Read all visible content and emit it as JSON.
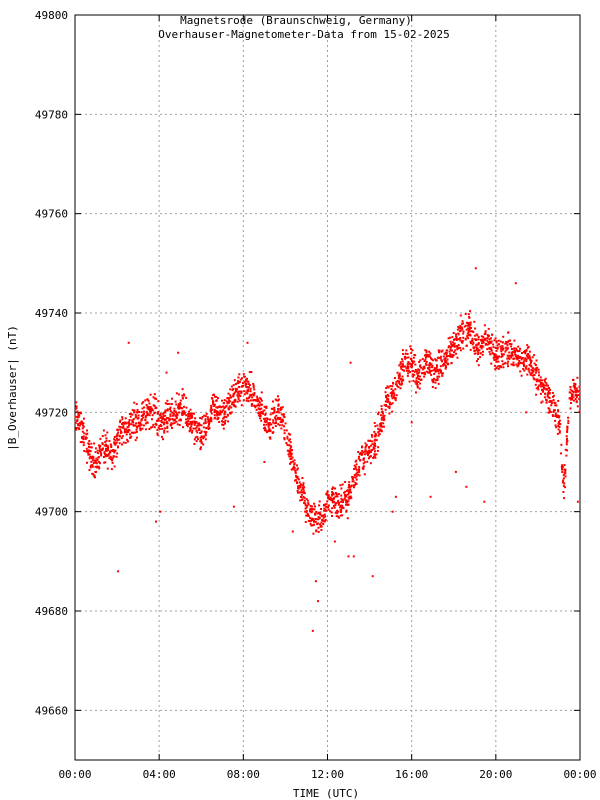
{
  "chart_data": {
    "type": "scatter",
    "title": "Magnetsrode (Braunschweig, Germany)",
    "subtitle": "Overhauser-Magnetometer-Data from 15-02-2025",
    "xlabel": "TIME (UTC)",
    "ylabel": "|B_Overhauser| (nT)",
    "xlim": [
      0,
      24
    ],
    "ylim": [
      49650,
      49800
    ],
    "x_tick_values": [
      0,
      4,
      8,
      12,
      16,
      20,
      24
    ],
    "x_tick_labels": [
      "00:00",
      "04:00",
      "08:00",
      "12:00",
      "16:00",
      "20:00",
      "00:00"
    ],
    "y_tick_values": [
      49660,
      49680,
      49700,
      49720,
      49740,
      49760,
      49780,
      49800
    ],
    "y_tick_labels": [
      "49660",
      "49680",
      "49700",
      "49720",
      "49740",
      "49760",
      "49780",
      "49800"
    ],
    "grid": true,
    "marker_color": "#ff0000",
    "series": [
      {
        "x": [
          0.0,
          0.25,
          0.5,
          0.75,
          1.0,
          1.25,
          1.5,
          1.75,
          2.0,
          2.25,
          2.5,
          2.75,
          3.0,
          3.25,
          3.5,
          3.75,
          4.0,
          4.25,
          4.5,
          4.75,
          5.0,
          5.25,
          5.5,
          5.75,
          6.0,
          6.25,
          6.5,
          6.75,
          7.0,
          7.25,
          7.5,
          7.75,
          8.0,
          8.25,
          8.5,
          8.75,
          9.0,
          9.25,
          9.5,
          9.75,
          10.0,
          10.25,
          10.5,
          10.75,
          11.0,
          11.25,
          11.5,
          11.75,
          12.0,
          12.25,
          12.5,
          12.75,
          13.0,
          13.25,
          13.5,
          13.75,
          14.0,
          14.25,
          14.5,
          14.75,
          15.0,
          15.25,
          15.5,
          15.75,
          16.0,
          16.25,
          16.5,
          16.75,
          17.0,
          17.25,
          17.5,
          17.75,
          18.0,
          18.25,
          18.5,
          18.75,
          19.0,
          19.25,
          19.5,
          19.75,
          20.0,
          20.25,
          20.5,
          20.75,
          21.0,
          21.25,
          21.5,
          21.75,
          22.0,
          22.25,
          22.5,
          22.75,
          23.0,
          23.25,
          23.5,
          23.75,
          24.0
        ],
        "y": [
          49719,
          49718,
          49714,
          49711,
          49710,
          49712,
          49713,
          49711,
          49715,
          49716,
          49717,
          49718,
          49719,
          49719,
          49720,
          49721,
          49718,
          49718,
          49719,
          49720,
          49721,
          49720,
          49718,
          49716,
          49715,
          49717,
          49720,
          49721,
          49719,
          49721,
          49723,
          49724,
          49725,
          49725,
          49723,
          49721,
          49719,
          49718,
          49719,
          49720,
          49717,
          49712,
          49708,
          49704,
          49701,
          49699,
          49698,
          49699,
          49702,
          49703,
          49701,
          49702,
          49703,
          49707,
          49710,
          49711,
          49712,
          49714,
          49717,
          49721,
          49723,
          49725,
          49728,
          49731,
          49730,
          49727,
          49729,
          49731,
          49728,
          49729,
          49730,
          49731,
          49733,
          49735,
          49736,
          49737,
          49734,
          49732,
          49735,
          49734,
          49731,
          49732,
          49733,
          49732,
          49731,
          49730,
          49731,
          49729,
          49727,
          49725,
          49723,
          49721,
          49718,
          49705,
          49722,
          49725,
          49723
        ]
      }
    ],
    "outliers": {
      "x": [
        2.05,
        2.55,
        3.85,
        4.05,
        4.35,
        4.9,
        7.55,
        8.2,
        9.0,
        10.35,
        11.3,
        11.45,
        11.55,
        12.35,
        13.0,
        13.1,
        13.25,
        14.15,
        15.1,
        15.25,
        16.0,
        16.9,
        18.1,
        18.6,
        19.05,
        19.45,
        20.95,
        21.45,
        22.55,
        23.9
      ],
      "y": [
        49688,
        49734,
        49698,
        49700,
        49728,
        49732,
        49701,
        49734,
        49710,
        49696,
        49676,
        49686,
        49682,
        49694,
        49691,
        49730,
        49691,
        49687,
        49700,
        49703,
        49718,
        49703,
        49708,
        49705,
        49749,
        49702,
        49746,
        49720,
        49720,
        49702
      ]
    }
  }
}
